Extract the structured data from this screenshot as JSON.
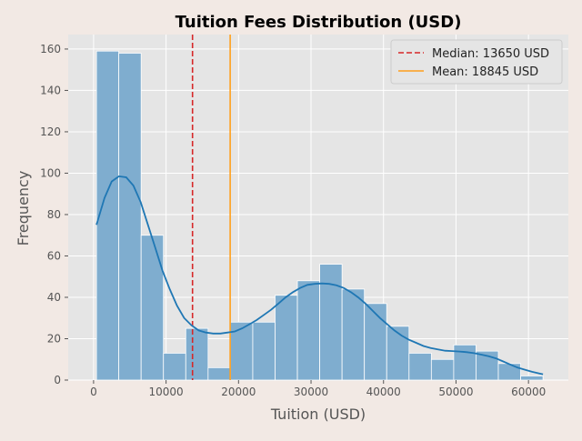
{
  "chart_data": {
    "type": "bar",
    "title": "Tuition Fees Distribution (USD)",
    "xlabel": "Tuition (USD)",
    "ylabel": "Frequency",
    "xlim": [
      -3500,
      65500
    ],
    "ylim": [
      0,
      167
    ],
    "xticks": [
      0,
      10000,
      20000,
      30000,
      40000,
      50000,
      60000
    ],
    "yticks": [
      0,
      20,
      40,
      60,
      80,
      100,
      120,
      140,
      160
    ],
    "grid": true,
    "legend_position": "top-right",
    "histogram": {
      "bin_width": 3080,
      "bins": [
        {
          "x0": 400,
          "x1": 3480,
          "count": 159
        },
        {
          "x0": 3480,
          "x1": 6560,
          "count": 158
        },
        {
          "x0": 6560,
          "x1": 9640,
          "count": 70
        },
        {
          "x0": 9640,
          "x1": 12720,
          "count": 13
        },
        {
          "x0": 12720,
          "x1": 15800,
          "count": 25
        },
        {
          "x0": 15800,
          "x1": 18880,
          "count": 6
        },
        {
          "x0": 18880,
          "x1": 21960,
          "count": 28
        },
        {
          "x0": 21960,
          "x1": 25040,
          "count": 28
        },
        {
          "x0": 25040,
          "x1": 28120,
          "count": 41
        },
        {
          "x0": 28120,
          "x1": 31200,
          "count": 48
        },
        {
          "x0": 31200,
          "x1": 34280,
          "count": 56
        },
        {
          "x0": 34280,
          "x1": 37360,
          "count": 44
        },
        {
          "x0": 37360,
          "x1": 40440,
          "count": 37
        },
        {
          "x0": 40440,
          "x1": 43520,
          "count": 26
        },
        {
          "x0": 43520,
          "x1": 46600,
          "count": 13
        },
        {
          "x0": 46600,
          "x1": 49680,
          "count": 10
        },
        {
          "x0": 49680,
          "x1": 52760,
          "count": 17
        },
        {
          "x0": 52760,
          "x1": 55840,
          "count": 14
        },
        {
          "x0": 55840,
          "x1": 58920,
          "count": 8
        },
        {
          "x0": 58920,
          "x1": 62000,
          "count": 2
        }
      ],
      "color": "#7fadcf",
      "edge_color": "#ffffff"
    },
    "kde": {
      "color": "#1f77b4",
      "points": [
        [
          400,
          75
        ],
        [
          1500,
          88
        ],
        [
          2500,
          96
        ],
        [
          3500,
          98.5
        ],
        [
          4500,
          98
        ],
        [
          5500,
          94
        ],
        [
          6500,
          86
        ],
        [
          7500,
          75
        ],
        [
          8500,
          64
        ],
        [
          9500,
          53
        ],
        [
          10500,
          44
        ],
        [
          11500,
          36
        ],
        [
          12500,
          30
        ],
        [
          13500,
          26.5
        ],
        [
          14500,
          24
        ],
        [
          15500,
          23
        ],
        [
          16500,
          22.5
        ],
        [
          17500,
          22.5
        ],
        [
          18500,
          23
        ],
        [
          19500,
          23.5
        ],
        [
          20500,
          25
        ],
        [
          21500,
          27
        ],
        [
          22500,
          29
        ],
        [
          23500,
          31.5
        ],
        [
          24500,
          34
        ],
        [
          25500,
          37
        ],
        [
          26500,
          40
        ],
        [
          27500,
          42.5
        ],
        [
          28500,
          44.5
        ],
        [
          29500,
          46
        ],
        [
          30500,
          46.5
        ],
        [
          31500,
          46.7
        ],
        [
          32500,
          46.5
        ],
        [
          33500,
          45.8
        ],
        [
          34500,
          44.5
        ],
        [
          35500,
          42.5
        ],
        [
          36500,
          40
        ],
        [
          37500,
          37
        ],
        [
          38500,
          33.5
        ],
        [
          39500,
          30
        ],
        [
          40500,
          27
        ],
        [
          41500,
          24
        ],
        [
          42500,
          21.5
        ],
        [
          43500,
          19.5
        ],
        [
          44500,
          18
        ],
        [
          45500,
          16.5
        ],
        [
          46500,
          15.5
        ],
        [
          47500,
          14.8
        ],
        [
          48500,
          14.2
        ],
        [
          49500,
          14
        ],
        [
          50500,
          13.8
        ],
        [
          51500,
          13.5
        ],
        [
          52500,
          13
        ],
        [
          53500,
          12.3
        ],
        [
          54500,
          11.5
        ],
        [
          55500,
          10.5
        ],
        [
          56500,
          9
        ],
        [
          57500,
          7.5
        ],
        [
          58500,
          6
        ],
        [
          59500,
          5
        ],
        [
          60500,
          4
        ],
        [
          61500,
          3.2
        ],
        [
          62000,
          2.8
        ]
      ]
    },
    "reference_lines": [
      {
        "label": "Median: 13650 USD",
        "x": 13650,
        "color": "#d62728",
        "style": "dashed"
      },
      {
        "label": "Mean: 18845 USD",
        "x": 18845,
        "color": "#ff9f1c",
        "style": "solid"
      }
    ],
    "colors": {
      "figure_background": "#f2e9e4",
      "plot_background": "#e5e5e5",
      "grid": "#ffffff",
      "tick_text": "#555555",
      "title_text": "#000000"
    }
  }
}
